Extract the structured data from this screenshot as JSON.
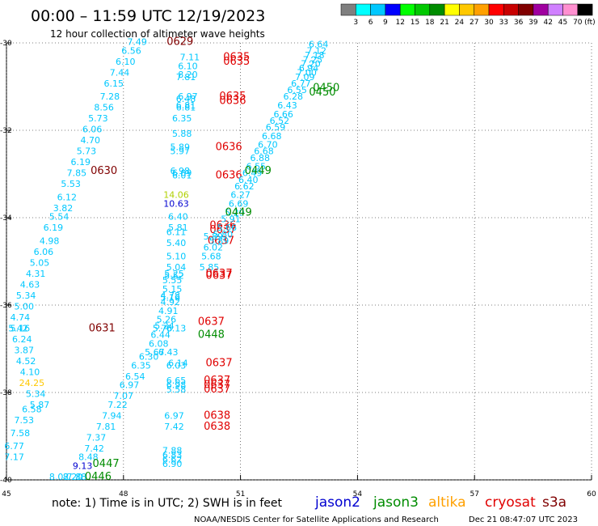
{
  "chart_data": {
    "type": "scatter",
    "title": "00:00 – 11:59 UTC 12/19/2023",
    "subtitle": "12 hour collection of altimeter wave heights",
    "xlabel": "",
    "ylabel": "",
    "xlim": [
      45,
      60
    ],
    "ylim": [
      -40,
      -30
    ],
    "x_ticks": [
      "45",
      "48",
      "51",
      "54",
      "57",
      "60"
    ],
    "y_ticks": [
      "-30",
      "-32",
      "-34",
      "-36",
      "-38",
      "-40"
    ],
    "grid": true,
    "colorbar": {
      "unit": "(ft)",
      "labels": [
        "3",
        "6",
        "9",
        "12",
        "15",
        "18",
        "21",
        "24",
        "27",
        "30",
        "33",
        "36",
        "39",
        "42",
        "45",
        "70"
      ],
      "colors": [
        "#7f7f7f",
        "#00ffff",
        "#00c8ff",
        "#0000ff",
        "#00ff00",
        "#00c800",
        "#008c00",
        "#ffff00",
        "#ffc800",
        "#ffa000",
        "#ff0000",
        "#c80000",
        "#800000",
        "#a000a0",
        "#d080ff",
        "#ff90d0",
        "#000000"
      ]
    },
    "legend": [
      {
        "name": "jason2",
        "color": "#0000d0"
      },
      {
        "name": "jason3",
        "color": "#008c00"
      },
      {
        "name": "altika",
        "color": "#ffa000"
      },
      {
        "name": "cryosat",
        "color": "#e00000"
      },
      {
        "name": "s3a",
        "color": "#800000"
      }
    ],
    "series": [
      {
        "label_color": "#e00000",
        "x": [
          49.45
        ],
        "y": [
          -30.05
        ],
        "labels": [
          "0629"
        ],
        "color": "#800000"
      },
      {
        "x": [
          48.35,
          48.2,
          48.05,
          47.9,
          47.75,
          47.65,
          47.5,
          47.35,
          47.2,
          47.15,
          47.05,
          46.9,
          46.8,
          46.65,
          46.55,
          46.45,
          46.35,
          46.2,
          46.1,
          45.95,
          45.85,
          45.75,
          45.6,
          45.5,
          45.45,
          45.35,
          45.3
        ],
        "y": [
          -30.05,
          -30.25,
          -30.5,
          -30.75,
          -31.0,
          -31.3,
          -31.55,
          -31.8,
          -32.05,
          -32.3,
          -32.55,
          -32.8,
          -33.05,
          -33.3,
          -33.6,
          -33.85,
          -34.05,
          -34.3,
          -34.6,
          -34.85,
          -35.1,
          -35.35,
          -35.6,
          -35.85,
          -36.1,
          -36.35,
          -36.6
        ],
        "labels": [
          "7.49",
          "6.56",
          "6.10",
          "7.44",
          "6.15",
          "7.28",
          "8.56",
          "5.73",
          "6.06",
          "4.70",
          "5.73",
          "6.19",
          "7.85",
          "5.53",
          "6.12",
          "3.82",
          "5.54",
          "6.19",
          "4.98",
          "6.06",
          "5.05",
          "4.31",
          "4.63",
          "5.34",
          "5.00",
          "4.74",
          "5.42"
        ],
        "color": "#00c8ff"
      },
      {
        "x": [
          45.35,
          45.4,
          45.45,
          45.5,
          45.6,
          45.65,
          45.75,
          45.85
        ],
        "y": [
          -36.6,
          -36.85,
          -37.1,
          -37.35,
          -37.6,
          -37.85,
          -38.1,
          -38.35
        ],
        "labels": [
          "5.16",
          "6.24",
          "3.87",
          "4.52",
          "4.10",
          "24.25",
          "5.34",
          "5.87"
        ],
        "colors": [
          "#00c8ff",
          "#00c8ff",
          "#00c8ff",
          "#00c8ff",
          "#00c8ff",
          "#ffc800",
          "#00c8ff",
          "#00c8ff"
        ],
        "color": "#00c8ff"
      },
      {
        "x": [
          47.5,
          47.45
        ],
        "y": [
          -33.0,
          -36.6
        ],
        "labels": [
          "0630",
          "0631"
        ],
        "color": "#800000"
      },
      {
        "x": [
          45.65,
          45.45,
          45.35,
          45.2
        ],
        "y": [
          -38.45,
          -38.7,
          -39.0,
          -39.3
        ],
        "labels": [
          "6.58",
          "7.53",
          "7.58",
          "6.77"
        ],
        "color": "#00c8ff"
      },
      {
        "x": [
          45.2
        ],
        "y": [
          -39.55
        ],
        "labels": [
          "7.17"
        ],
        "color": "#00c8ff"
      },
      {
        "x": [
          48.65,
          48.45,
          48.3,
          48.15,
          48.0,
          47.85,
          47.7,
          47.55,
          47.3,
          47.25,
          47.1,
          46.95,
          46.8,
          46.7
        ],
        "y": [
          -37.25,
          -37.45,
          -37.7,
          -37.9,
          -38.15,
          -38.35,
          -38.6,
          -38.85,
          -39.1,
          -39.35,
          -39.55,
          -39.75,
          -40.0,
          -40.0
        ],
        "labels": [
          "6.30",
          "6.35",
          "6.54",
          "6.97",
          "7.07",
          "7.22",
          "7.94",
          "7.81",
          "7.37",
          "7.42",
          "8.48",
          "9.13",
          "7.88",
          "8.20"
        ],
        "colors": [
          "#00c8ff",
          "#00c8ff",
          "#00c8ff",
          "#00c8ff",
          "#00c8ff",
          "#00c8ff",
          "#00c8ff",
          "#00c8ff",
          "#00c8ff",
          "#00c8ff",
          "#00c8ff",
          "#0000d0",
          "#00c8ff",
          "#00c8ff"
        ],
        "color": "#00c8ff"
      },
      {
        "x": [
          46.35
        ],
        "y": [
          -40.0
        ],
        "labels": [
          "8.02"
        ],
        "color": "#00c8ff"
      },
      {
        "x": [
          47.55,
          47.35
        ],
        "y": [
          -39.7,
          -40.0
        ],
        "labels": [
          "0447",
          "0446"
        ],
        "color": "#008c00"
      },
      {
        "x": [
          49.7,
          49.65,
          49.65
        ],
        "y": [
          -30.4,
          -30.6,
          -30.8
        ],
        "labels": [
          "7.11",
          "6.10",
          "8.20"
        ],
        "color": "#00c8ff"
      },
      {
        "x": [
          49.6
        ],
        "y": [
          -30.85
        ],
        "labels": [
          "7.81"
        ],
        "color": "#00c8ff"
      },
      {
        "x": [
          50.9,
          50.9
        ],
        "y": [
          -30.4,
          -30.5
        ],
        "labels": [
          "0635",
          "0635"
        ],
        "color": "#e00000"
      },
      {
        "x": [
          49.65,
          49.6,
          49.6,
          49.6
        ],
        "y": [
          -31.3,
          -31.35,
          -31.5,
          -31.55
        ],
        "labels": [
          "6.97",
          "6.48",
          "6.81",
          "6.81"
        ],
        "color": "#00c8ff"
      },
      {
        "x": [
          50.8,
          50.8
        ],
        "y": [
          -31.3,
          -31.4
        ],
        "labels": [
          "0635",
          "0636"
        ],
        "color": "#e00000"
      },
      {
        "x": [
          49.5,
          49.5,
          49.45,
          49.45,
          49.45
        ],
        "y": [
          -31.8,
          -32.15,
          -32.45,
          -32.55,
          -33.0
        ],
        "labels": [
          "6.35",
          "5.88",
          "5.89",
          "5.97",
          "6.98"
        ],
        "color": "#00c8ff"
      },
      {
        "x": [
          49.5,
          49.5
        ],
        "y": [
          -33.05,
          -33.1
        ],
        "labels": [
          "6.09",
          "6.01"
        ],
        "color": "#00c8ff"
      },
      {
        "x": [
          50.7,
          50.7
        ],
        "y": [
          -32.45,
          -33.1
        ],
        "labels": [
          "0636",
          "0636"
        ],
        "color": "#e00000"
      },
      {
        "x": [
          49.35
        ],
        "y": [
          -33.55
        ],
        "labels": [
          "14.06"
        ],
        "color": "#b0d000"
      },
      {
        "x": [
          49.35
        ],
        "y": [
          -33.75
        ],
        "labels": [
          "10.63"
        ],
        "color": "#0000d0"
      },
      {
        "x": [
          49.4,
          49.4,
          49.35,
          49.35,
          49.35,
          49.35,
          49.3,
          49.3,
          49.25,
          49.25,
          49.2,
          49.2
        ],
        "y": [
          -34.05,
          -34.3,
          -34.4,
          -34.65,
          -34.95,
          -35.2,
          -35.35,
          -35.4,
          -35.5,
          -35.7,
          -35.85,
          -36.0
        ],
        "labels": [
          "6.40",
          "5.81",
          "6.11",
          "5.40",
          "5.10",
          "5.04",
          "5.25",
          "5.52",
          "5.55",
          "5.15",
          "4.78",
          "4.92"
        ],
        "color": "#00c8ff"
      },
      {
        "x": [
          50.55,
          50.55,
          50.5
        ],
        "y": [
          -34.25,
          -34.35,
          -34.6
        ],
        "labels": [
          "0636",
          "0637",
          "0637"
        ],
        "color": "#e00000"
      },
      {
        "x": [
          50.3,
          50.3,
          50.25,
          50.2
        ],
        "y": [
          -34.5,
          -34.75,
          -34.95,
          -35.2
        ],
        "labels": [
          "5.89",
          "6.02",
          "5.68",
          "5.85"
        ],
        "color": "#00c8ff"
      },
      {
        "x": [
          50.45,
          50.45
        ],
        "y": [
          -35.35,
          -35.4
        ],
        "labels": [
          "0637",
          "0637"
        ],
        "color": "#e00000"
      },
      {
        "x": [
          49.2
        ],
        "y": [
          -35.9
        ],
        "labels": [
          "5.16"
        ],
        "color": "#00c8ff"
      },
      {
        "x": [
          49.15,
          49.1,
          49.05,
          49.0,
          48.95,
          48.9,
          48.8
        ],
        "y": [
          -36.2,
          -36.4,
          -36.55,
          -36.6,
          -36.75,
          -36.95,
          -37.15
        ],
        "labels": [
          "4.91",
          "5.26",
          "5.24",
          "5.76",
          "6.44",
          "6.08",
          "5.67"
        ],
        "color": "#00c8ff"
      },
      {
        "x": [
          49.35
        ],
        "y": [
          -36.6
        ],
        "labels": [
          "6.13"
        ],
        "color": "#00c8ff"
      },
      {
        "x": [
          49.15
        ],
        "y": [
          -37.15
        ],
        "labels": [
          "6.43"
        ],
        "color": "#00c8ff"
      },
      {
        "x": [
          50.25
        ],
        "y": [
          -36.45
        ],
        "labels": [
          "0637"
        ],
        "color": "#e00000"
      },
      {
        "x": [
          50.25
        ],
        "y": [
          -36.75
        ],
        "labels": [
          "0448"
        ],
        "color": "#008c00"
      },
      {
        "x": [
          49.4,
          49.35,
          49.35,
          49.35,
          49.35
        ],
        "y": [
          -37.4,
          -37.45,
          -37.8,
          -37.9,
          -38.0
        ],
        "labels": [
          "6.14",
          "6.03",
          "6.65",
          "6.98",
          "5.58"
        ],
        "color": "#00c8ff"
      },
      {
        "x": [
          50.45,
          50.4,
          50.4,
          50.4
        ],
        "y": [
          -37.4,
          -37.8,
          -37.9,
          -38.0
        ],
        "labels": [
          "0637",
          "0637",
          "0637",
          "0637"
        ],
        "color": "#e00000"
      },
      {
        "x": [
          49.3,
          49.3
        ],
        "y": [
          -38.6,
          -38.85
        ],
        "labels": [
          "6.97",
          "7.42"
        ],
        "color": "#00c8ff"
      },
      {
        "x": [
          50.4,
          50.4
        ],
        "y": [
          -38.6,
          -38.85
        ],
        "labels": [
          "0638",
          "0638"
        ],
        "color": "#e00000"
      },
      {
        "x": [
          49.25,
          49.25,
          49.25,
          49.25
        ],
        "y": [
          -39.4,
          -39.5,
          -39.6,
          -39.7
        ],
        "labels": [
          "7.88",
          "6.83",
          "6.62",
          "6.90"
        ],
        "color": "#00c8ff"
      },
      {
        "x": [
          53.0,
          52.95,
          52.9,
          52.85,
          52.8,
          52.75,
          52.7,
          52.65,
          52.55,
          52.45,
          52.35,
          52.2,
          52.1,
          52.0,
          51.9,
          51.8,
          51.7,
          51.6,
          51.5,
          51.4,
          51.3,
          51.2,
          51.1,
          51.0,
          50.95,
          50.85,
          50.75,
          50.65,
          50.55,
          50.45
        ],
        "y": [
          -30.1,
          -30.25,
          -30.35,
          -30.45,
          -30.55,
          -30.65,
          -30.75,
          -30.85,
          -31.0,
          -31.15,
          -31.3,
          -31.5,
          -31.7,
          -31.85,
          -32.0,
          -32.2,
          -32.4,
          -32.55,
          -32.7,
          -32.9,
          -33.05,
          -33.2,
          -33.35,
          -33.55,
          -33.75,
          -33.95,
          -34.1,
          -34.3,
          -34.45,
          -34.6
        ],
        "labels": [
          "6.64",
          "7.12",
          "7.18",
          "7.25",
          "7.20",
          "6.94",
          "7.00",
          "7.09",
          "6.77",
          "6.55",
          "6.28",
          "6.43",
          "6.66",
          "6.52",
          "6.59",
          "6.68",
          "6.70",
          "6.68",
          "6.88",
          "6.55",
          "6.49",
          "6.40",
          "6.62",
          "6.27",
          "6.69",
          "5.29",
          "5.91",
          "5.66",
          "5.80",
          "5.89"
        ],
        "color": "#00c8ff"
      },
      {
        "x": [
          53.2,
          53.1,
          51.45,
          50.95
        ],
        "y": [
          -31.1,
          -31.2,
          -33.0,
          -33.95
        ],
        "labels": [
          "0450",
          "0450",
          "0449",
          "0449"
        ],
        "color": "#008c00"
      }
    ]
  },
  "title_text": "00:00 – 11:59 UTC 12/19/2023",
  "subtitle_text": "12 hour collection of altimeter wave heights",
  "note_text": "note:  1) Time is in UTC; 2) SWH is in feet",
  "credit_text": "NOAA/NESDIS Center for Satellite Applications and Research",
  "timestamp_text": "Dec 21 08:47:07 UTC 2023"
}
